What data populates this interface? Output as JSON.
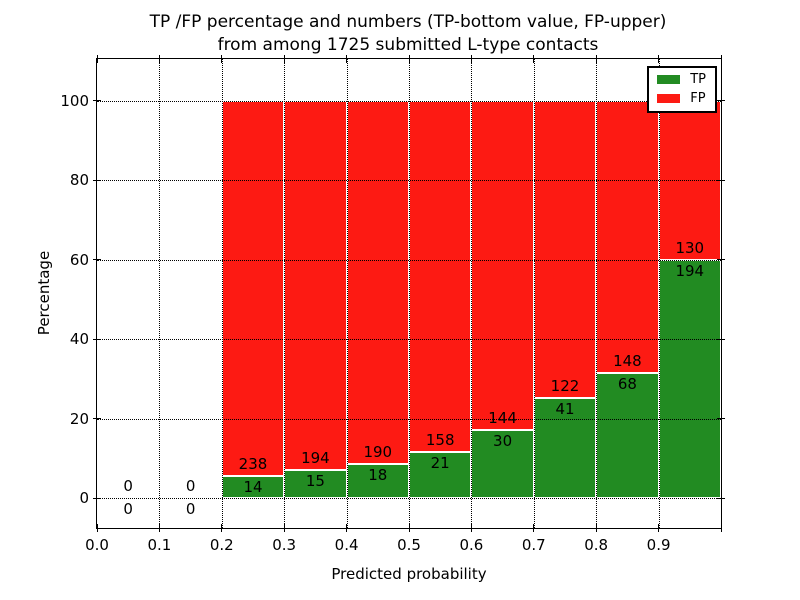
{
  "chart_data": {
    "type": "bar",
    "stacked": true,
    "normalized_to_percent": true,
    "title": "TP /FP percentage and numbers (TP-bottom value, FP-upper)\nfrom among 1725 submitted L-type contacts",
    "title_lines": [
      "TP /FP percentage and numbers (TP-bottom value, FP-upper)",
      "from among 1725 submitted L-type contacts"
    ],
    "total_contacts": 1725,
    "xlabel": "Predicted probability",
    "ylabel": "Percentage",
    "xlim": [
      0.0,
      1.0
    ],
    "ylim": [
      -7.5,
      110.5
    ],
    "xticks": [
      "0.0",
      "0.1",
      "0.2",
      "0.3",
      "0.4",
      "0.5",
      "0.6",
      "0.7",
      "0.8",
      "0.9"
    ],
    "yticks": [
      0,
      20,
      40,
      60,
      80,
      100
    ],
    "grid": "dotted",
    "legend": {
      "position": "upper right",
      "entries": [
        {
          "label": "TP",
          "color": "#228b22"
        },
        {
          "label": "FP",
          "color": "#fd1a13"
        }
      ]
    },
    "colors": {
      "tp": "#228b22",
      "fp": "#fd1a13",
      "bar_edge": "#ffffff",
      "grid": "#000000"
    },
    "bins": [
      {
        "x0": 0.0,
        "x1": 0.1,
        "tp": 0,
        "fp": 0
      },
      {
        "x0": 0.1,
        "x1": 0.2,
        "tp": 0,
        "fp": 0
      },
      {
        "x0": 0.2,
        "x1": 0.3,
        "tp": 14,
        "fp": 238
      },
      {
        "x0": 0.3,
        "x1": 0.4,
        "tp": 15,
        "fp": 194
      },
      {
        "x0": 0.4,
        "x1": 0.5,
        "tp": 18,
        "fp": 190
      },
      {
        "x0": 0.5,
        "x1": 0.6,
        "tp": 21,
        "fp": 158
      },
      {
        "x0": 0.6,
        "x1": 0.7,
        "tp": 30,
        "fp": 144
      },
      {
        "x0": 0.7,
        "x1": 0.8,
        "tp": 41,
        "fp": 122
      },
      {
        "x0": 0.8,
        "x1": 0.9,
        "tp": 68,
        "fp": 148
      },
      {
        "x0": 0.9,
        "x1": 1.0,
        "tp": 194,
        "fp": 130
      }
    ]
  }
}
